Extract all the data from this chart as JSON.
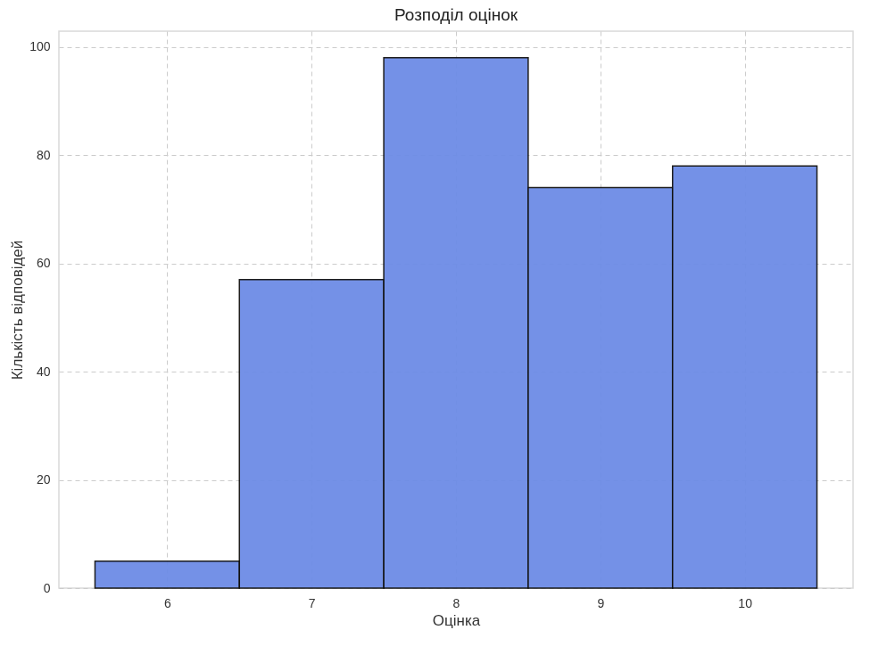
{
  "chart_data": {
    "type": "histogram",
    "title": "Розподіл оцінок",
    "xlabel": "Оцінка",
    "ylabel": "Кількість відповідей",
    "bins": [
      5.5,
      6.5,
      7.5,
      8.5,
      9.5,
      10.5
    ],
    "values": [
      5,
      57,
      98,
      74,
      78
    ],
    "color": "#6d8ce6",
    "xlim": [
      5.25,
      10.75
    ],
    "xticks": [
      6,
      7,
      8,
      9,
      10
    ],
    "ylim": [
      0,
      102.9
    ],
    "yticks": [
      0,
      20,
      40,
      60,
      80,
      100
    ],
    "grid": true
  }
}
